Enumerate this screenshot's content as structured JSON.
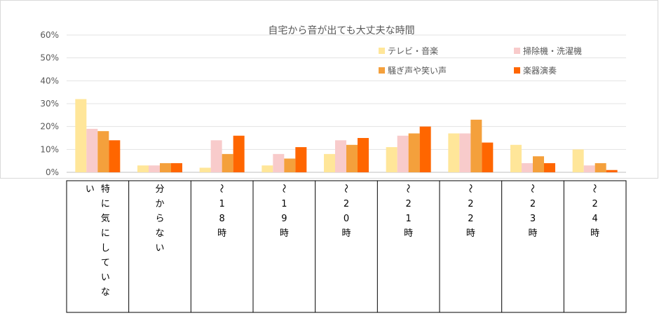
{
  "chart_data": {
    "type": "bar",
    "title": "自宅から音が出ても大丈夫な時間",
    "ylim": [
      0,
      60
    ],
    "yticks": [
      "0%",
      "10%",
      "20%",
      "30%",
      "40%",
      "50%",
      "60%"
    ],
    "grid": true,
    "legend_position": "top-right",
    "categories": [
      "特に気にしていない",
      "分からない",
      "〜18時",
      "〜19時",
      "〜20時",
      "〜21時",
      "〜22時",
      "〜23時",
      "〜24時"
    ],
    "category_columns": [
      [
        "特に気にしていな",
        "い"
      ],
      [
        "分からない"
      ],
      [
        "〜18時"
      ],
      [
        "〜19時"
      ],
      [
        "〜20時"
      ],
      [
        "〜21時"
      ],
      [
        "〜22時"
      ],
      [
        "〜23時"
      ],
      [
        "〜24時"
      ]
    ],
    "series": [
      {
        "name": "テレビ・音楽",
        "color": "#FFE699",
        "values": [
          32,
          3,
          2,
          3,
          8,
          11,
          17,
          12,
          10
        ]
      },
      {
        "name": "掃除機・洗濯機",
        "color": "#F8CBCB",
        "values": [
          19,
          3,
          14,
          8,
          14,
          16,
          17,
          4,
          3
        ]
      },
      {
        "name": "騒ぎ声や笑い声",
        "color": "#F4A03C",
        "values": [
          18,
          4,
          8,
          6,
          12,
          17,
          23,
          7,
          4
        ]
      },
      {
        "name": "楽器演奏",
        "color": "#FF6600",
        "values": [
          14,
          4,
          16,
          11,
          15,
          20,
          13,
          4,
          1
        ]
      }
    ]
  }
}
